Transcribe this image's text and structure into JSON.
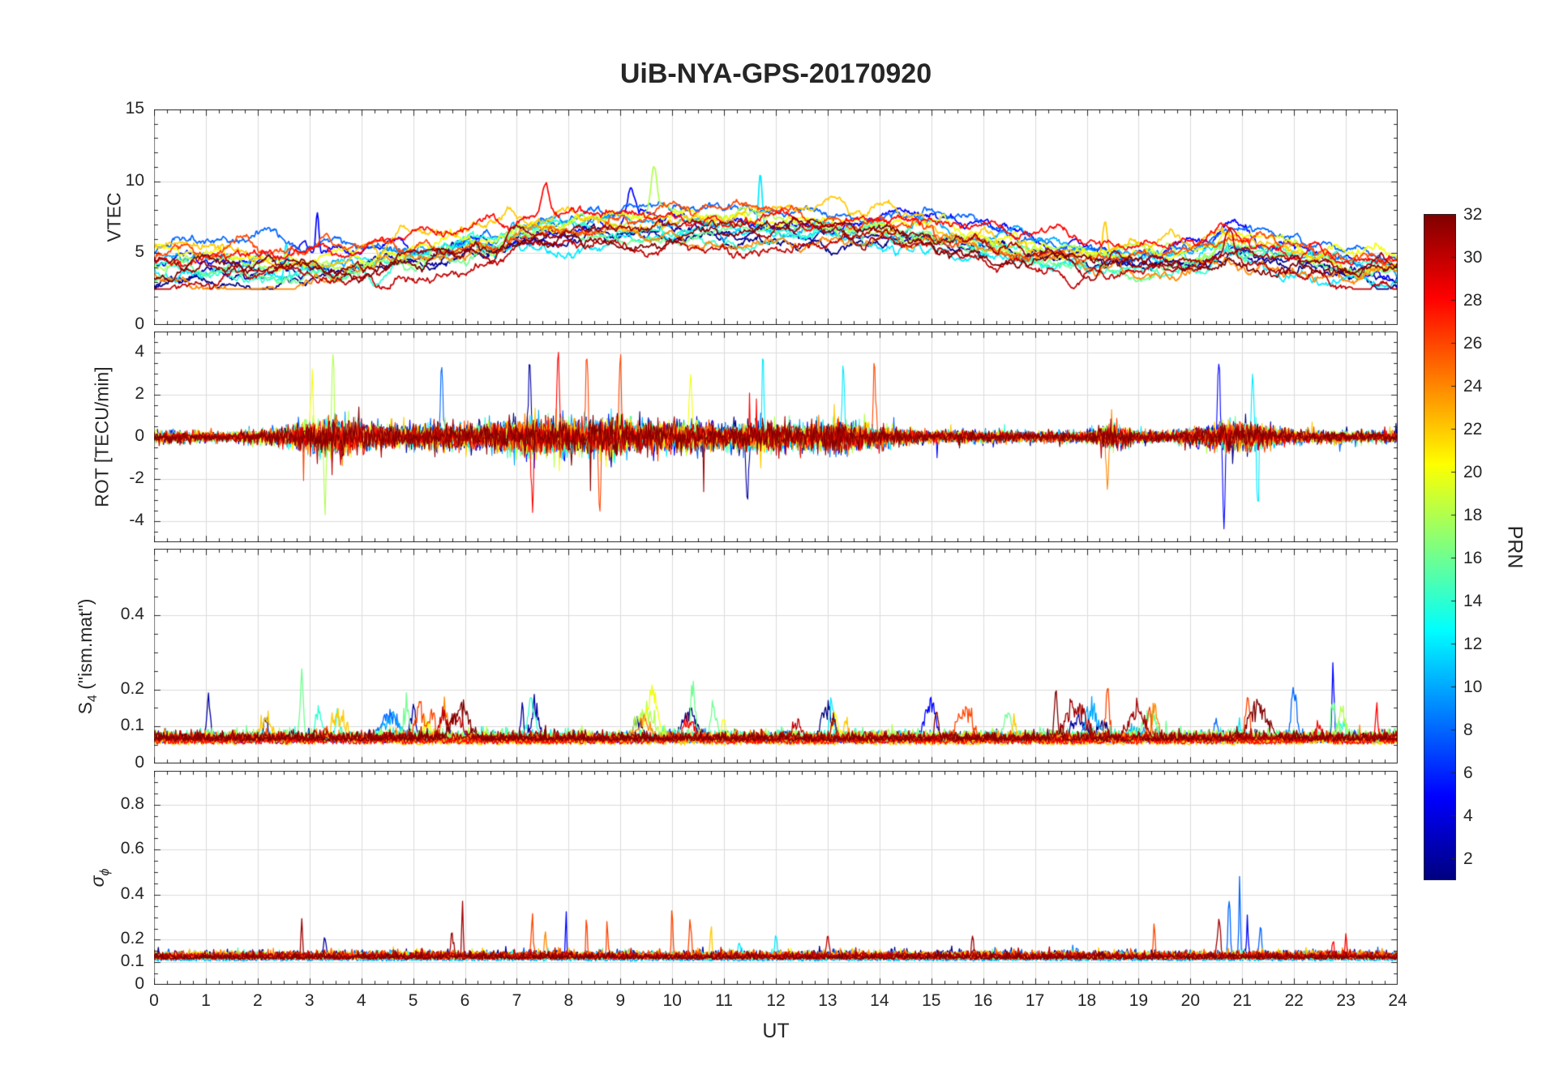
{
  "chart_data": {
    "type": "line",
    "title": "UiB-NYA-GPS-20170920",
    "xlabel": "UT",
    "x_range": [
      0,
      24
    ],
    "x_ticks": [
      0,
      1,
      2,
      3,
      4,
      5,
      6,
      7,
      8,
      9,
      10,
      11,
      12,
      13,
      14,
      15,
      16,
      17,
      18,
      19,
      20,
      21,
      22,
      23,
      24
    ],
    "x_minor_step": 0.25,
    "samples": 1440,
    "prns": [
      1,
      2,
      5,
      8,
      10,
      12,
      14,
      16,
      18,
      20,
      22,
      24,
      26,
      28,
      30,
      31,
      32
    ],
    "colors": {
      "axis": "#262626",
      "grid": "#dcdcdc",
      "background": "#ffffff"
    },
    "colorbar": {
      "label": "PRN",
      "min": 1,
      "max": 32,
      "ticks": [
        2,
        4,
        6,
        8,
        10,
        12,
        14,
        16,
        18,
        20,
        22,
        24,
        26,
        28,
        30,
        32
      ],
      "colormap": "jet"
    },
    "panels": [
      {
        "ylabel": "VTEC",
        "ylabel_main": "VTEC",
        "ylim": [
          0,
          15
        ],
        "yticks": [
          0,
          5,
          10,
          15
        ],
        "ytick_labels": [
          "0",
          "5",
          "10",
          "15"
        ],
        "y_minor_step": 1,
        "line_width": 1.7,
        "kind": "vtec",
        "baseline_x": [
          0,
          1,
          2,
          3,
          4,
          5,
          6,
          6.5,
          7,
          8,
          9,
          10,
          11,
          12,
          13,
          14,
          15,
          16,
          17,
          18,
          19,
          20,
          20.7,
          21.5,
          22,
          23,
          24
        ],
        "baseline_y": [
          3.9,
          4.1,
          3.9,
          4.1,
          4.4,
          4.7,
          5.2,
          5.5,
          6.0,
          6.4,
          6.6,
          6.8,
          6.9,
          6.8,
          6.6,
          6.5,
          6.2,
          5.6,
          4.9,
          4.5,
          4.3,
          4.5,
          5.3,
          5.0,
          4.6,
          4.0,
          3.9
        ],
        "prn_offset": 1.1,
        "spikes": [
          {
            "t": 2.55,
            "amp": 2.6,
            "w": 0.05,
            "prn": 12
          },
          {
            "t": 3.15,
            "amp": 2.8,
            "w": 0.04,
            "prn": 5
          },
          {
            "t": 7.55,
            "amp": 2.0,
            "w": 0.1,
            "prn": 28
          },
          {
            "t": 9.65,
            "amp": 3.2,
            "w": 0.08,
            "prn": 18
          },
          {
            "t": 11.7,
            "amp": 3.8,
            "w": 0.05,
            "prn": 12
          },
          {
            "t": 9.2,
            "amp": 2.0,
            "w": 0.1,
            "prn": 5
          },
          {
            "t": 18.35,
            "amp": 2.2,
            "w": 0.06,
            "prn": 22
          },
          {
            "t": 20.75,
            "amp": 2.2,
            "w": 0.12,
            "prn": 30
          }
        ]
      },
      {
        "ylabel": "ROT [TECU/min]",
        "ylabel_main": "ROT [TECU/min]",
        "ylim": [
          -5,
          5
        ],
        "yticks": [
          -4,
          -2,
          0,
          2,
          4
        ],
        "ytick_labels": [
          "-4",
          "-2",
          "0",
          "2",
          "4"
        ],
        "y_minor_step": 0.5,
        "line_width": 1.1,
        "kind": "rot",
        "env_x": [
          0,
          0.7,
          1.5,
          2.5,
          3,
          3.6,
          4.2,
          5,
          5.5,
          6,
          6.8,
          7.3,
          8,
          8.7,
          9.5,
          10.2,
          11,
          11.8,
          12.5,
          13.2,
          14,
          14.8,
          16,
          17,
          18,
          18.45,
          19,
          19.6,
          20.3,
          20.8,
          21.4,
          22,
          23,
          24
        ],
        "env_y": [
          0.45,
          0.5,
          0.4,
          0.8,
          1.3,
          1.5,
          1.1,
          0.9,
          1.1,
          1.0,
          1.3,
          1.6,
          1.5,
          1.7,
          1.2,
          1.3,
          1.1,
          1.3,
          1.1,
          1.3,
          0.9,
          0.55,
          0.5,
          0.45,
          0.5,
          1.0,
          0.5,
          0.45,
          0.9,
          1.3,
          1.0,
          0.55,
          0.5,
          0.45
        ],
        "spikes": [
          {
            "t": 3.05,
            "amp": 3.3,
            "w": 0.03,
            "prn": 20
          },
          {
            "t": 3.3,
            "amp": -3.4,
            "w": 0.03,
            "prn": 18
          },
          {
            "t": 3.45,
            "amp": 4.2,
            "w": 0.03,
            "prn": 18
          },
          {
            "t": 5.55,
            "amp": 3.6,
            "w": 0.03,
            "prn": 8
          },
          {
            "t": 7.25,
            "amp": 4.0,
            "w": 0.03,
            "prn": 2
          },
          {
            "t": 7.3,
            "amp": -3.6,
            "w": 0.03,
            "prn": 28
          },
          {
            "t": 7.8,
            "amp": 3.9,
            "w": 0.03,
            "prn": 28
          },
          {
            "t": 8.35,
            "amp": 4.1,
            "w": 0.03,
            "prn": 26
          },
          {
            "t": 8.6,
            "amp": -3.8,
            "w": 0.03,
            "prn": 26
          },
          {
            "t": 9.0,
            "amp": 3.4,
            "w": 0.03,
            "prn": 26
          },
          {
            "t": 10.35,
            "amp": 3.2,
            "w": 0.03,
            "prn": 20
          },
          {
            "t": 11.45,
            "amp": -3.2,
            "w": 0.03,
            "prn": 2
          },
          {
            "t": 11.75,
            "amp": 4.8,
            "w": 0.025,
            "prn": 12
          },
          {
            "t": 13.3,
            "amp": 3.4,
            "w": 0.03,
            "prn": 12
          },
          {
            "t": 13.9,
            "amp": 3.6,
            "w": 0.03,
            "prn": 26
          },
          {
            "t": 18.4,
            "amp": -2.6,
            "w": 0.03,
            "prn": 24
          },
          {
            "t": 20.55,
            "amp": 3.8,
            "w": 0.03,
            "prn": 5
          },
          {
            "t": 20.65,
            "amp": -4.3,
            "w": 0.03,
            "prn": 5
          },
          {
            "t": 21.2,
            "amp": 3.3,
            "w": 0.03,
            "prn": 12
          },
          {
            "t": 21.3,
            "amp": -3.0,
            "w": 0.03,
            "prn": 12
          }
        ]
      },
      {
        "ylabel": "S_4 (\"ism.mat\")",
        "ylabel_main": "S",
        "ylabel_sub": "4",
        "ylabel_rest": " (\"ism.mat\")",
        "ylim": [
          0,
          0.58
        ],
        "yticks": [
          0,
          0.1,
          0.2,
          0.4
        ],
        "ytick_labels": [
          "0",
          "0.1",
          "0.2",
          "0.4"
        ],
        "y_minor_step": 0.05,
        "line_width": 1.3,
        "kind": "s4",
        "burst_windows": [
          [
            0.7,
            3.6
          ],
          [
            4.5,
            6.2
          ],
          [
            6.8,
            7.5
          ],
          [
            9.3,
            11.2
          ],
          [
            12.5,
            13.5
          ],
          [
            14.8,
            16.8
          ],
          [
            17.2,
            19.4
          ],
          [
            20.3,
            23.2
          ]
        ],
        "spikes": [
          {
            "t": 1.05,
            "amp": 0.145,
            "w": 0.05,
            "prn": 2
          },
          {
            "t": 2.15,
            "amp": 0.08,
            "w": 0.05,
            "prn": 2
          },
          {
            "t": 2.85,
            "amp": 0.185,
            "w": 0.04,
            "prn": 16
          },
          {
            "t": 3.55,
            "amp": 0.08,
            "w": 0.05,
            "prn": 14
          },
          {
            "t": 5.0,
            "amp": 0.1,
            "w": 0.08,
            "prn": 2
          },
          {
            "t": 5.6,
            "amp": 0.1,
            "w": 0.08,
            "prn": 24
          },
          {
            "t": 7.1,
            "amp": 0.12,
            "w": 0.04,
            "prn": 2
          },
          {
            "t": 9.6,
            "amp": 0.13,
            "w": 0.15,
            "prn": 20
          },
          {
            "t": 10.4,
            "amp": 0.17,
            "w": 0.06,
            "prn": 16
          },
          {
            "t": 10.8,
            "amp": 0.1,
            "w": 0.08,
            "prn": 16
          },
          {
            "t": 12.4,
            "amp": 0.05,
            "w": 0.1,
            "prn": 30
          },
          {
            "t": 15.1,
            "amp": 0.1,
            "w": 0.05,
            "prn": 32
          },
          {
            "t": 16.6,
            "amp": 0.09,
            "w": 0.06,
            "prn": 22
          },
          {
            "t": 17.4,
            "amp": 0.12,
            "w": 0.04,
            "prn": 32
          },
          {
            "t": 18.4,
            "amp": 0.14,
            "w": 0.06,
            "prn": 26
          },
          {
            "t": 19.2,
            "amp": 0.1,
            "w": 0.06,
            "prn": 26
          },
          {
            "t": 21.1,
            "amp": 0.12,
            "w": 0.06,
            "prn": 26
          },
          {
            "t": 22.0,
            "amp": 0.16,
            "w": 0.07,
            "prn": 8
          },
          {
            "t": 22.75,
            "amp": 0.22,
            "w": 0.03,
            "prn": 5
          },
          {
            "t": 23.6,
            "amp": 0.09,
            "w": 0.05,
            "prn": 28
          }
        ]
      },
      {
        "ylabel": "σ_ϕ",
        "ylabel_main": "σ",
        "ylabel_sub": "ϕ",
        "ylim": [
          0,
          0.95
        ],
        "yticks": [
          0,
          0.1,
          0.2,
          0.4,
          0.6,
          0.8
        ],
        "ytick_labels": [
          "0",
          "0.1",
          "0.2",
          "0.4",
          "0.6",
          "0.8"
        ],
        "y_minor_step": 0.05,
        "line_width": 1.3,
        "kind": "sigphi",
        "spikes": [
          {
            "t": 2.85,
            "amp": 0.24,
            "w": 0.02,
            "prn": 31
          },
          {
            "t": 3.3,
            "amp": 0.12,
            "w": 0.03,
            "prn": 2
          },
          {
            "t": 5.75,
            "amp": 0.12,
            "w": 0.04,
            "prn": 31
          },
          {
            "t": 5.95,
            "amp": 0.35,
            "w": 0.02,
            "prn": 31
          },
          {
            "t": 7.3,
            "amp": 0.17,
            "w": 0.03,
            "prn": 26
          },
          {
            "t": 7.55,
            "amp": 0.13,
            "w": 0.03,
            "prn": 24
          },
          {
            "t": 7.95,
            "amp": 0.3,
            "w": 0.015,
            "prn": 5
          },
          {
            "t": 8.35,
            "amp": 0.22,
            "w": 0.02,
            "prn": 26
          },
          {
            "t": 8.75,
            "amp": 0.2,
            "w": 0.02,
            "prn": 26
          },
          {
            "t": 10.0,
            "amp": 0.3,
            "w": 0.02,
            "prn": 26
          },
          {
            "t": 10.35,
            "amp": 0.18,
            "w": 0.03,
            "prn": 26
          },
          {
            "t": 10.75,
            "amp": 0.22,
            "w": 0.02,
            "prn": 22
          },
          {
            "t": 11.3,
            "amp": 0.1,
            "w": 0.04,
            "prn": 12
          },
          {
            "t": 12.0,
            "amp": 0.12,
            "w": 0.03,
            "prn": 12
          },
          {
            "t": 13.0,
            "amp": 0.1,
            "w": 0.04,
            "prn": 30
          },
          {
            "t": 15.8,
            "amp": 0.12,
            "w": 0.03,
            "prn": 31
          },
          {
            "t": 19.3,
            "amp": 0.2,
            "w": 0.02,
            "prn": 26
          },
          {
            "t": 20.55,
            "amp": 0.2,
            "w": 0.04,
            "prn": 31
          },
          {
            "t": 20.75,
            "amp": 0.3,
            "w": 0.03,
            "prn": 8
          },
          {
            "t": 20.95,
            "amp": 0.45,
            "w": 0.02,
            "prn": 8
          },
          {
            "t": 21.1,
            "amp": 0.2,
            "w": 0.03,
            "prn": 5
          },
          {
            "t": 21.35,
            "amp": 0.15,
            "w": 0.03,
            "prn": 8
          },
          {
            "t": 22.75,
            "amp": 0.12,
            "w": 0.02,
            "prn": 28
          },
          {
            "t": 23.0,
            "amp": 0.13,
            "w": 0.02,
            "prn": 28
          }
        ]
      }
    ]
  }
}
